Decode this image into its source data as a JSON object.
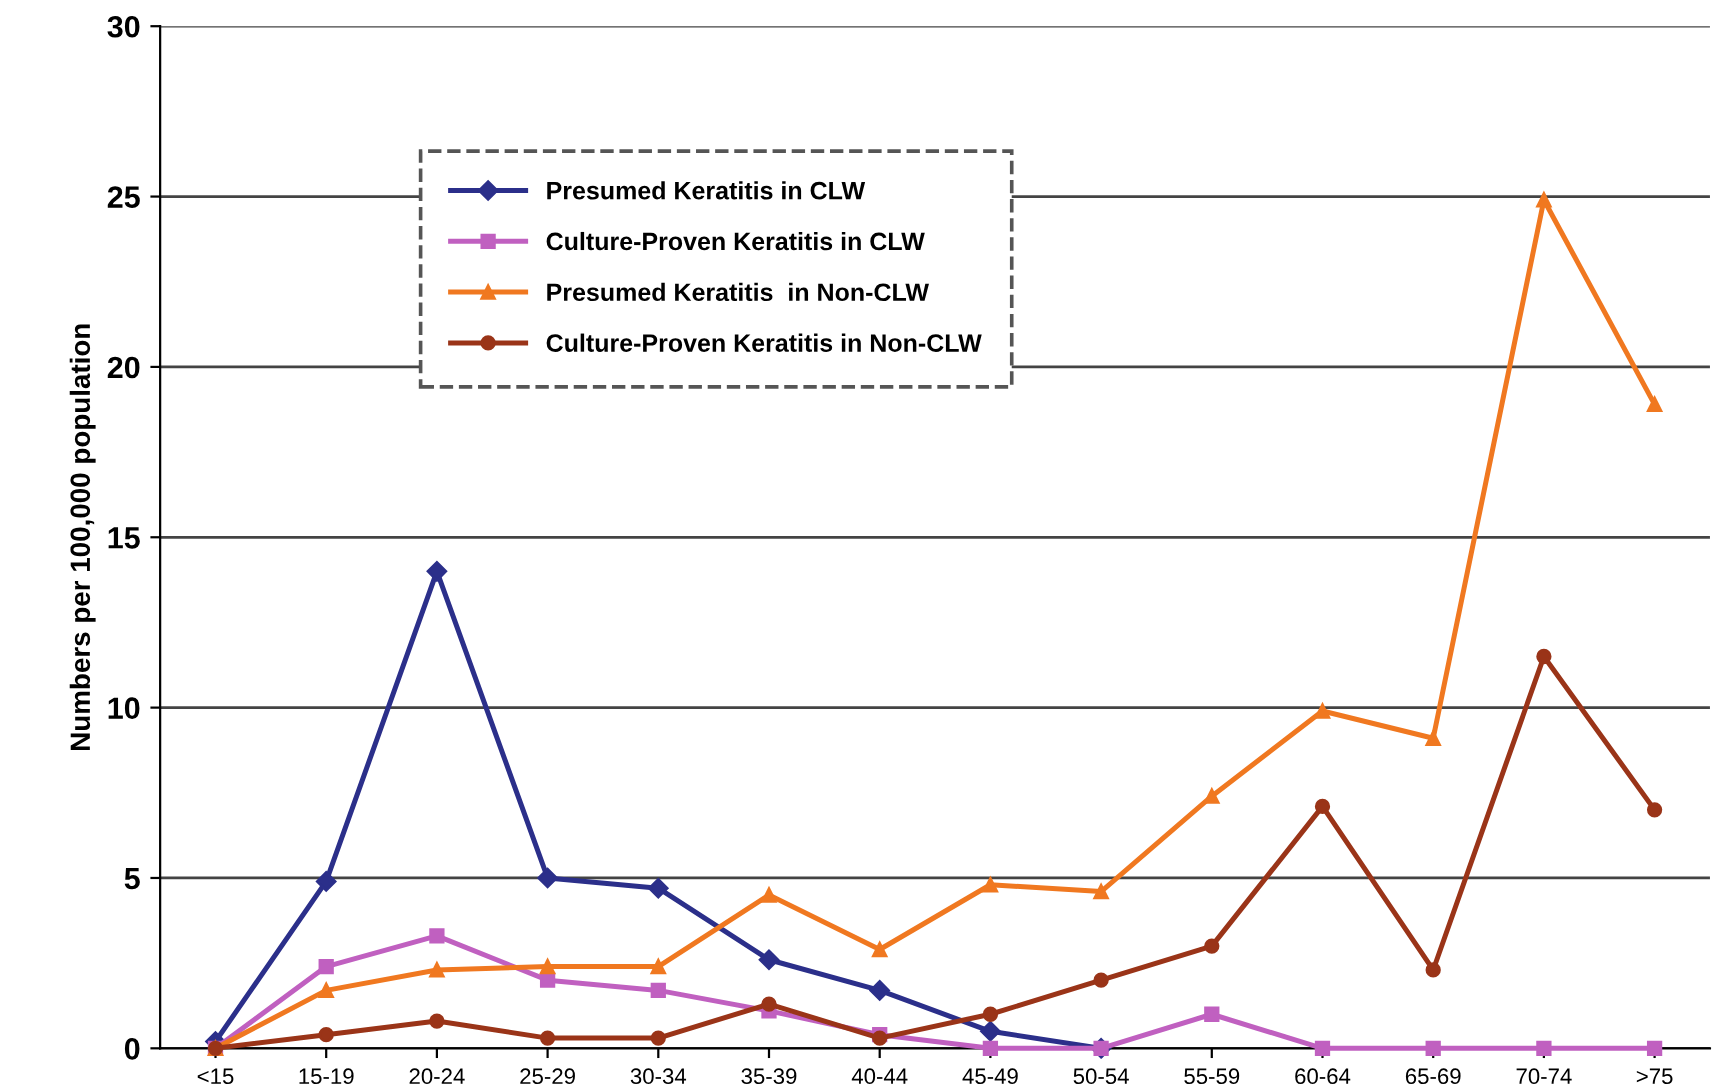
{
  "chart_data": {
    "type": "line",
    "ylabel": "Numbers per 100,000 population",
    "categories": [
      "<15",
      "15-19",
      "20-24",
      "25-29",
      "30-34",
      "35-39",
      "40-44",
      "45-49",
      "50-54",
      "55-59",
      "60-64",
      "65-69",
      "70-74",
      ">75"
    ],
    "series": [
      {
        "name": "Presumed Keratitis in CLW",
        "color": "#2b2f8a",
        "marker": "diamond",
        "values": [
          0.2,
          4.9,
          14.0,
          5.0,
          4.7,
          2.6,
          1.7,
          0.5,
          0,
          null,
          null,
          null,
          null,
          null
        ]
      },
      {
        "name": "Culture-Proven Keratitis in CLW",
        "color": "#c060c0",
        "marker": "square",
        "values": [
          0,
          2.4,
          3.3,
          2.0,
          1.7,
          1.1,
          0.4,
          0,
          0,
          1.0,
          0,
          0,
          0,
          0
        ]
      },
      {
        "name": "Presumed Keratitis  in Non-CLW",
        "color": "#f07820",
        "marker": "triangle",
        "values": [
          0,
          1.7,
          2.3,
          2.4,
          2.4,
          4.5,
          2.9,
          4.8,
          4.6,
          7.4,
          9.9,
          9.1,
          24.9,
          18.9
        ]
      },
      {
        "name": "Culture-Proven Keratitis in Non-CLW",
        "color": "#9a3418",
        "marker": "circle",
        "values": [
          0,
          0.4,
          0.8,
          0.3,
          0.3,
          1.3,
          0.3,
          1.0,
          2.0,
          3.0,
          7.1,
          2.3,
          11.5,
          7.0
        ]
      }
    ],
    "ylim": [
      0,
      30
    ],
    "yticks": [
      0,
      5,
      10,
      15,
      20,
      25,
      30
    ],
    "grid": "y",
    "legend": "top left",
    "line_style": "solid"
  }
}
